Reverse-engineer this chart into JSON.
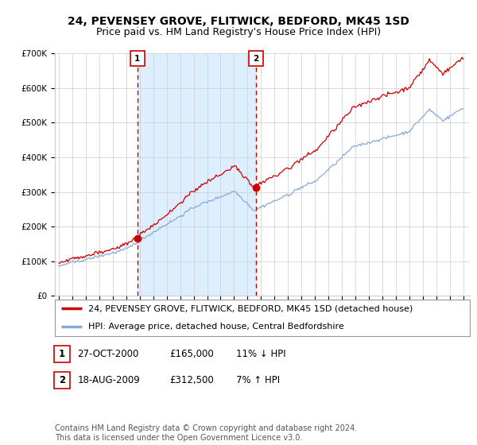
{
  "title": "24, PEVENSEY GROVE, FLITWICK, BEDFORD, MK45 1SD",
  "subtitle": "Price paid vs. HM Land Registry's House Price Index (HPI)",
  "ylim": [
    0,
    700000
  ],
  "yticks": [
    0,
    100000,
    200000,
    300000,
    400000,
    500000,
    600000,
    700000
  ],
  "ytick_labels": [
    "£0",
    "£100K",
    "£200K",
    "£300K",
    "£400K",
    "£500K",
    "£600K",
    "£700K"
  ],
  "x_start_year": 1995,
  "x_end_year": 2025,
  "transaction1_date": 2000.83,
  "transaction1_value": 165000,
  "transaction2_date": 2009.63,
  "transaction2_value": 312500,
  "line_color_red": "#cc0000",
  "line_color_blue": "#88aadd",
  "fill_color": "#ddeeff",
  "vline_color": "#cc0000",
  "grid_color": "#cccccc",
  "background_color": "#ffffff",
  "marker_color": "#cc0000",
  "legend_line1": "24, PEVENSEY GROVE, FLITWICK, BEDFORD, MK45 1SD (detached house)",
  "legend_line2": "HPI: Average price, detached house, Central Bedfordshire",
  "table_row1": [
    "1",
    "27-OCT-2000",
    "£165,000",
    "11% ↓ HPI"
  ],
  "table_row2": [
    "2",
    "18-AUG-2009",
    "£312,500",
    "7% ↑ HPI"
  ],
  "footnote": "Contains HM Land Registry data © Crown copyright and database right 2024.\nThis data is licensed under the Open Government Licence v3.0.",
  "title_fontsize": 10,
  "subtitle_fontsize": 9,
  "tick_fontsize": 7.5,
  "legend_fontsize": 8,
  "table_fontsize": 8.5,
  "footnote_fontsize": 7
}
